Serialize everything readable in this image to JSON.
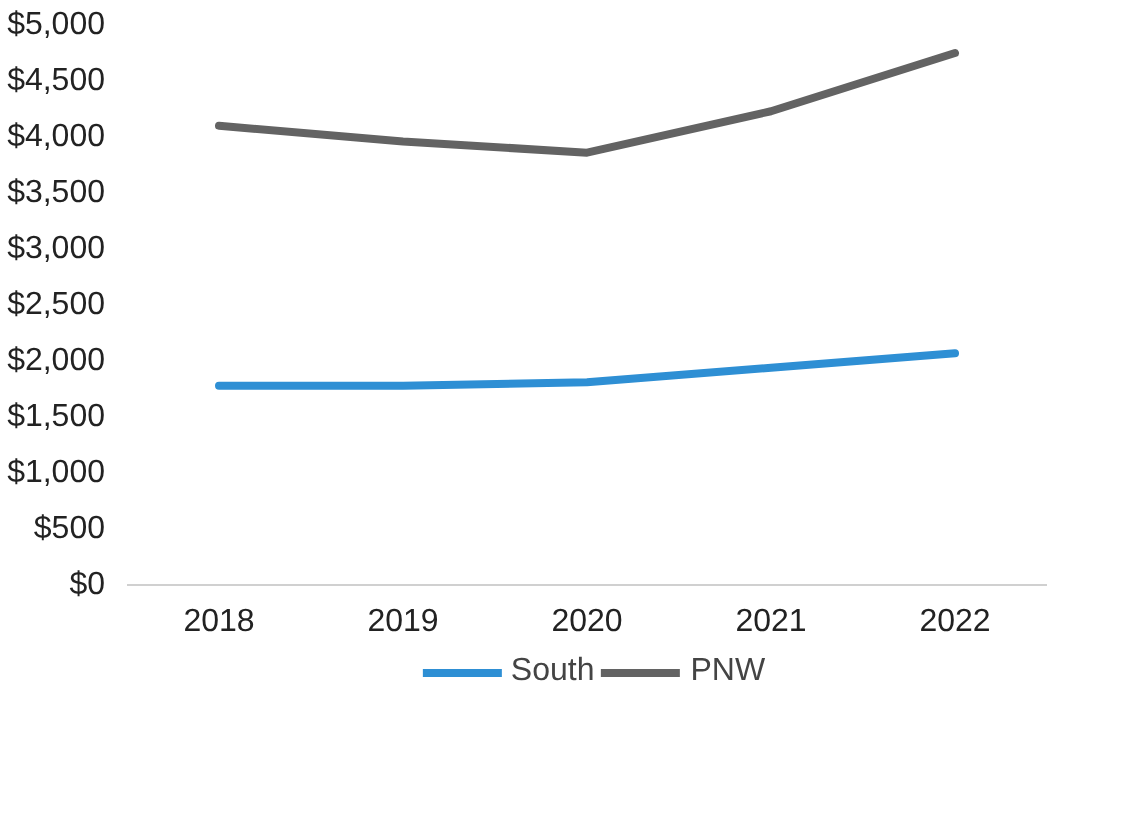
{
  "chart_data": {
    "type": "line",
    "categories": [
      "2018",
      "2019",
      "2020",
      "2021",
      "2022"
    ],
    "series": [
      {
        "name": "South",
        "color": "#2e8fd4",
        "values": [
          1780,
          1780,
          1810,
          1940,
          2070
        ]
      },
      {
        "name": "PNW",
        "color": "#636363",
        "values": [
          4100,
          3960,
          3860,
          4230,
          4750
        ]
      }
    ],
    "ylim": [
      0,
      5000
    ],
    "yticks": [
      {
        "value": 0,
        "label": "$0"
      },
      {
        "value": 500,
        "label": "$500"
      },
      {
        "value": 1000,
        "label": "$1,000"
      },
      {
        "value": 1500,
        "label": "$1,500"
      },
      {
        "value": 2000,
        "label": "$2,000"
      },
      {
        "value": 2500,
        "label": "$2,500"
      },
      {
        "value": 3000,
        "label": "$3,000"
      },
      {
        "value": 3500,
        "label": "$3,500"
      },
      {
        "value": 4000,
        "label": "$4,000"
      },
      {
        "value": 4500,
        "label": "$4,500"
      },
      {
        "value": 5000,
        "label": "$5,000"
      }
    ],
    "grid": false,
    "legend": "bottom",
    "line_style": "solid"
  }
}
